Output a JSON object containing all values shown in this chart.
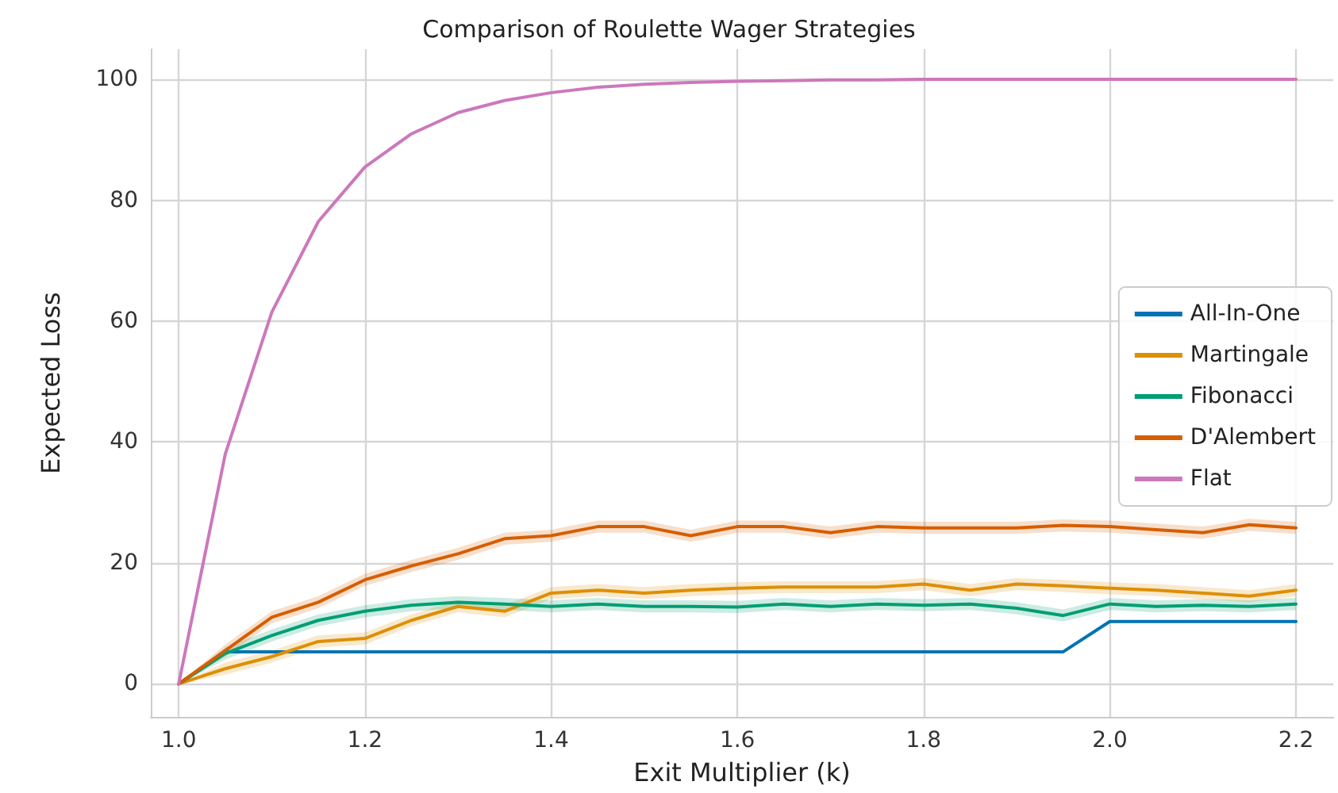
{
  "chart_data": {
    "type": "line",
    "title": "Comparison of Roulette Wager Strategies",
    "xlabel": "Exit Multiplier (k)",
    "ylabel": "Expected Loss",
    "x": [
      1.0,
      1.05,
      1.1,
      1.15,
      1.2,
      1.25,
      1.3,
      1.35,
      1.4,
      1.45,
      1.5,
      1.55,
      1.6,
      1.65,
      1.7,
      1.75,
      1.8,
      1.85,
      1.9,
      1.95,
      2.0,
      2.05,
      2.1,
      2.15,
      2.2
    ],
    "series": [
      {
        "name": "All-In-One",
        "color": "#0173b2",
        "values": [
          0,
          5.3,
          5.3,
          5.3,
          5.3,
          5.3,
          5.3,
          5.3,
          5.3,
          5.3,
          5.3,
          5.3,
          5.3,
          5.3,
          5.3,
          5.3,
          5.3,
          5.3,
          5.3,
          5.3,
          10.3,
          10.3,
          10.3,
          10.3,
          10.3
        ]
      },
      {
        "name": "Martingale",
        "color": "#de8f05",
        "values": [
          0,
          2.5,
          4.5,
          7,
          7.5,
          10.5,
          12.8,
          12,
          15,
          15.5,
          15,
          15.5,
          15.8,
          16,
          16,
          16,
          16.5,
          15.5,
          16.5,
          16.2,
          15.8,
          15.5,
          15,
          14.5,
          15.5
        ],
        "lower": [
          0,
          1.5,
          3.5,
          6,
          6.5,
          9.5,
          11.8,
          11,
          14,
          14.5,
          14,
          14.5,
          14.8,
          15,
          15,
          15,
          15.5,
          14.5,
          15.5,
          15.2,
          14.8,
          14.5,
          14,
          13.5,
          14.5
        ],
        "upper": [
          0,
          3.5,
          5.5,
          8,
          8.5,
          11.5,
          13.8,
          13,
          16,
          16.5,
          16,
          16.5,
          16.8,
          17,
          17,
          17,
          17.5,
          16.5,
          17.5,
          17.2,
          16.8,
          16.5,
          16,
          15.5,
          16.5
        ]
      },
      {
        "name": "Fibonacci",
        "color": "#029e73",
        "values": [
          0,
          5,
          8,
          10.5,
          12,
          13,
          13.5,
          13.2,
          12.8,
          13.2,
          12.8,
          12.8,
          12.7,
          13.2,
          12.8,
          13.2,
          13,
          13.2,
          12.5,
          11.3,
          13.2,
          12.8,
          13,
          12.8,
          13.2
        ],
        "lower": [
          0,
          4,
          7,
          9.5,
          11,
          12,
          12.5,
          12.2,
          11.8,
          12.2,
          11.8,
          11.8,
          11.7,
          12.2,
          11.8,
          12.2,
          12,
          12.2,
          11.5,
          10.3,
          12.2,
          11.8,
          12,
          11.8,
          12.2
        ],
        "upper": [
          0,
          6,
          9,
          11.5,
          13,
          14,
          14.5,
          14.2,
          13.8,
          14.2,
          13.8,
          13.8,
          13.7,
          14.2,
          13.8,
          14.2,
          14,
          14.2,
          13.5,
          12.3,
          14.2,
          13.8,
          14,
          13.8,
          14.2
        ]
      },
      {
        "name": "D'Alembert",
        "color": "#d55e00",
        "values": [
          0,
          5.5,
          11,
          13.5,
          17.2,
          19.5,
          21.5,
          24,
          24.5,
          26,
          26,
          24.5,
          26,
          26,
          25,
          26,
          25.8,
          25.8,
          25.8,
          26.2,
          26,
          25.5,
          25,
          26.3,
          25.8
        ],
        "lower": [
          0,
          4.5,
          10,
          12.5,
          16.2,
          18.5,
          20.5,
          23,
          23.5,
          25,
          25,
          23.5,
          25,
          25,
          24,
          25,
          24.8,
          24.8,
          24.8,
          25.2,
          25,
          24.5,
          24,
          25.3,
          24.8
        ],
        "upper": [
          0,
          6.5,
          12,
          14.5,
          18.2,
          20.5,
          22.5,
          25,
          25.5,
          27,
          27,
          25.5,
          27,
          27,
          26,
          27,
          26.8,
          26.8,
          26.8,
          27.2,
          27,
          26.5,
          26,
          27.3,
          26.8
        ]
      },
      {
        "name": "Flat",
        "color": "#cc78bc",
        "values": [
          0,
          38,
          61.5,
          76.5,
          85.5,
          91,
          94.5,
          96.5,
          97.8,
          98.7,
          99.2,
          99.5,
          99.7,
          99.8,
          99.9,
          99.9,
          100,
          100,
          100,
          100,
          100,
          100,
          100,
          100,
          100
        ]
      }
    ],
    "xlim": [
      0.97,
      2.24
    ],
    "xticks": [
      {
        "value": 1.0,
        "label": "1.0"
      },
      {
        "value": 1.2,
        "label": "1.2"
      },
      {
        "value": 1.4,
        "label": "1.4"
      },
      {
        "value": 1.6,
        "label": "1.6"
      },
      {
        "value": 1.8,
        "label": "1.8"
      },
      {
        "value": 2.0,
        "label": "2.0"
      },
      {
        "value": 2.2,
        "label": "2.2"
      }
    ],
    "ylim": [
      -5.5,
      105
    ],
    "yticks": [
      0,
      20,
      40,
      60,
      80,
      100
    ],
    "grid": true,
    "legend": "right",
    "marker": "none",
    "line_style": "solid"
  }
}
